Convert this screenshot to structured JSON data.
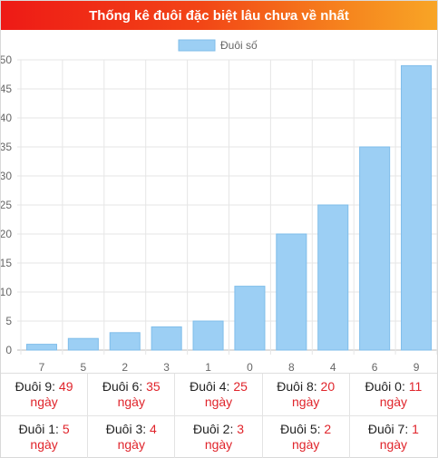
{
  "header": {
    "title": "Thống kê đuôi đặc biệt lâu chưa về nhất"
  },
  "chart_data": {
    "type": "bar",
    "legend": {
      "label": "Đuôi số",
      "position": "top",
      "color": "#9ccff4"
    },
    "categories": [
      "7",
      "5",
      "2",
      "3",
      "1",
      "0",
      "8",
      "4",
      "6",
      "9"
    ],
    "series": [
      {
        "name": "Đuôi số",
        "values": [
          1,
          2,
          3,
          4,
          5,
          11,
          20,
          25,
          35,
          49
        ],
        "color": "#9ccff4",
        "border": "#7fbdea"
      }
    ],
    "y_ticks": [
      "0",
      "5",
      "10",
      "15",
      "20",
      "25",
      "30",
      "35",
      "40",
      "45",
      "50"
    ],
    "ylim": [
      0,
      50
    ],
    "grid": true
  },
  "stats": [
    {
      "label": "Đuôi 9:",
      "value": "49",
      "unit": "ngày"
    },
    {
      "label": "Đuôi 6:",
      "value": "35",
      "unit": "ngày"
    },
    {
      "label": "Đuôi 4:",
      "value": "25",
      "unit": "ngày"
    },
    {
      "label": "Đuôi 8:",
      "value": "20",
      "unit": "ngày"
    },
    {
      "label": "Đuôi 0:",
      "value": "11",
      "unit": "ngày"
    },
    {
      "label": "Đuôi 1:",
      "value": "5",
      "unit": "ngày"
    },
    {
      "label": "Đuôi 3:",
      "value": "4",
      "unit": "ngày"
    },
    {
      "label": "Đuôi 2:",
      "value": "3",
      "unit": "ngày"
    },
    {
      "label": "Đuôi 5:",
      "value": "2",
      "unit": "ngày"
    },
    {
      "label": "Đuôi 7:",
      "value": "1",
      "unit": "ngày"
    }
  ],
  "colors": {
    "accent_red": "#e0242b",
    "gradient_start": "#ee1a16",
    "gradient_end": "#f8a526"
  }
}
